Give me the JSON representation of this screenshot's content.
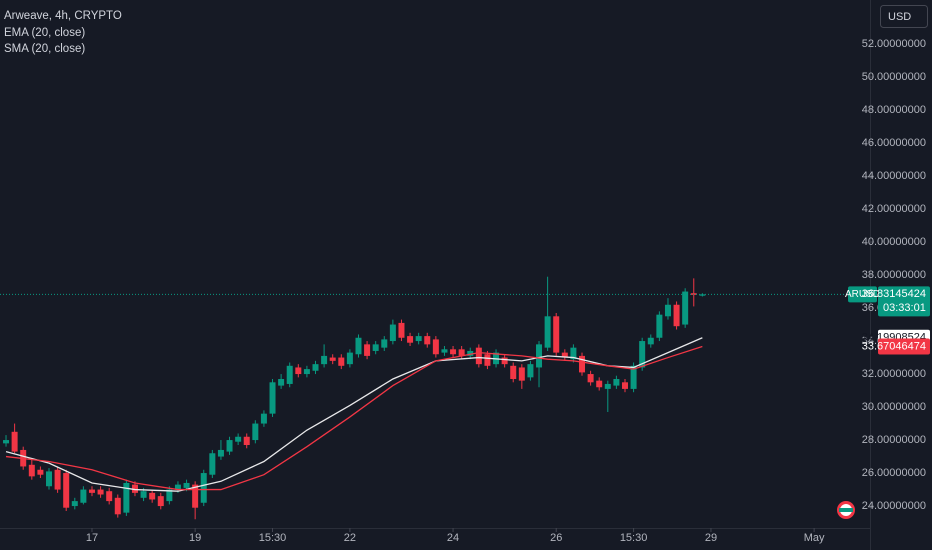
{
  "chart_data": {
    "type": "candlestick",
    "title": "Arweave, 4h, CRYPTO",
    "currency": "USD",
    "symbol_tag": "ARUSD",
    "countdown": "03:33:01",
    "up_color": "#089981",
    "down_color": "#f23645",
    "grid": false,
    "x": [
      0,
      1,
      2,
      3,
      4,
      5,
      6,
      7,
      8,
      9,
      10,
      11,
      12,
      13,
      14,
      15,
      16,
      17,
      18,
      19,
      20,
      21,
      22,
      23,
      24,
      25,
      26,
      27,
      28,
      29,
      30,
      31,
      32,
      33,
      34,
      35,
      36,
      37,
      38,
      39,
      40,
      41,
      42,
      43,
      44,
      45,
      46,
      47,
      48,
      49,
      50,
      51,
      52,
      53,
      54,
      55,
      56,
      57,
      58,
      59,
      60,
      61,
      62,
      63,
      64,
      65,
      66,
      67,
      68,
      69,
      70,
      71,
      72,
      73,
      74,
      75,
      76,
      77,
      78,
      79,
      80,
      81
    ],
    "open": [
      27.8,
      28.5,
      27.4,
      26.5,
      26.2,
      25.2,
      26.2,
      26.0,
      24.0,
      24.2,
      25.0,
      25.0,
      24.9,
      24.5,
      23.6,
      25.3,
      24.5,
      24.8,
      24.6,
      24.3,
      25.0,
      25.1,
      25.3,
      24.2,
      25.9,
      27.0,
      27.3,
      27.9,
      28.2,
      28.0,
      29.0,
      29.6,
      31.3,
      31.4,
      32.4,
      32.0,
      32.2,
      32.6,
      33.0,
      33.0,
      32.6,
      33.2,
      33.8,
      33.4,
      33.6,
      34.0,
      35.1,
      34.3,
      34.0,
      34.3,
      34.1,
      33.3,
      33.5,
      33.5,
      33.1,
      33.6,
      33.2,
      32.6,
      33.0,
      32.5,
      32.4,
      31.8,
      32.4,
      33.6,
      35.5,
      33.3,
      32.9,
      33.1,
      32.0,
      31.6,
      31.1,
      31.3,
      31.5,
      31.1,
      32.4,
      33.8,
      34.2,
      35.5,
      36.2,
      35.0,
      36.9,
      36.75
    ],
    "high": [
      28.3,
      29.0,
      27.6,
      26.8,
      26.4,
      26.3,
      26.4,
      26.2,
      24.5,
      25.2,
      25.2,
      25.2,
      25.1,
      24.7,
      25.6,
      25.5,
      25.1,
      25.0,
      24.8,
      25.2,
      25.5,
      25.6,
      25.5,
      26.2,
      27.4,
      28.0,
      28.2,
      28.4,
      28.4,
      29.2,
      29.8,
      31.7,
      32.0,
      32.7,
      32.6,
      32.5,
      32.8,
      33.8,
      33.2,
      33.2,
      33.5,
      34.4,
      34.0,
      34.0,
      34.3,
      35.3,
      35.3,
      34.5,
      34.5,
      34.5,
      34.3,
      33.7,
      33.7,
      33.7,
      33.6,
      33.8,
      33.4,
      33.5,
      33.2,
      32.7,
      32.6,
      32.8,
      34.0,
      37.9,
      35.7,
      33.5,
      33.8,
      33.3,
      32.2,
      31.8,
      31.6,
      31.9,
      31.7,
      32.7,
      34.2,
      34.4,
      35.8,
      36.6,
      36.4,
      37.2,
      37.8,
      36.9
    ],
    "low": [
      27.6,
      27.2,
      26.2,
      25.6,
      25.7,
      25.0,
      24.8,
      23.7,
      23.8,
      24.1,
      24.6,
      24.5,
      24.1,
      23.3,
      23.4,
      24.6,
      24.3,
      24.2,
      23.8,
      24.1,
      24.8,
      24.9,
      23.2,
      24.0,
      25.7,
      26.8,
      27.1,
      27.7,
      27.5,
      27.8,
      28.8,
      29.4,
      31.1,
      31.2,
      31.8,
      31.8,
      32.0,
      32.4,
      32.6,
      32.3,
      32.4,
      33.0,
      32.9,
      33.2,
      33.4,
      33.8,
      34.0,
      33.7,
      33.8,
      33.6,
      33.0,
      33.1,
      33.0,
      32.9,
      32.9,
      32.4,
      32.3,
      32.4,
      32.4,
      31.5,
      31.1,
      31.6,
      31.2,
      33.4,
      33.1,
      32.8,
      32.7,
      31.9,
      31.3,
      31.0,
      29.7,
      31.1,
      30.9,
      30.9,
      32.2,
      33.6,
      34.0,
      35.3,
      34.7,
      34.8,
      36.1,
      36.7
    ],
    "close": [
      28.0,
      27.3,
      26.4,
      25.8,
      25.9,
      26.1,
      25.0,
      23.9,
      24.3,
      25.0,
      24.8,
      24.7,
      24.3,
      23.5,
      25.4,
      24.8,
      24.9,
      24.4,
      24.0,
      25.0,
      25.3,
      25.4,
      23.9,
      26.0,
      27.2,
      27.4,
      28.0,
      28.2,
      27.7,
      29.0,
      29.6,
      31.5,
      31.7,
      32.5,
      32.0,
      32.3,
      32.6,
      33.1,
      32.8,
      32.5,
      33.3,
      34.2,
      33.1,
      33.8,
      34.1,
      35.0,
      34.2,
      33.9,
      34.3,
      33.8,
      33.2,
      33.5,
      33.2,
      33.1,
      33.4,
      32.6,
      32.5,
      33.3,
      32.6,
      31.7,
      31.6,
      32.6,
      33.8,
      35.5,
      33.3,
      33.0,
      33.6,
      32.1,
      31.5,
      31.2,
      31.4,
      31.7,
      31.1,
      32.5,
      34.0,
      34.2,
      35.6,
      36.2,
      34.9,
      37.0,
      36.8,
      36.83145424
    ],
    "lines": [
      {
        "name": "EMA (20, close)",
        "color": "#e8e8ea",
        "label_fill": "#ffffff",
        "label_text": "#131722",
        "x": [
          0,
          5,
          10,
          15,
          20,
          25,
          30,
          35,
          40,
          45,
          50,
          55,
          60,
          63,
          66,
          70,
          73,
          77,
          81
        ],
        "values": [
          27.3,
          26.6,
          25.4,
          25.0,
          24.9,
          25.5,
          26.7,
          28.6,
          30.1,
          31.7,
          32.8,
          33.0,
          32.8,
          33.1,
          33.0,
          32.5,
          32.4,
          33.3,
          34.19908524
        ]
      },
      {
        "name": "SMA (20, close)",
        "color": "#f23645",
        "label_fill": "#f23645",
        "label_text": "#ffffff",
        "x": [
          0,
          5,
          10,
          15,
          20,
          25,
          30,
          35,
          40,
          45,
          50,
          55,
          60,
          63,
          66,
          70,
          73,
          77,
          81
        ],
        "values": [
          27.0,
          26.7,
          26.2,
          25.4,
          25.0,
          25.0,
          25.9,
          27.6,
          29.4,
          31.3,
          32.8,
          33.3,
          33.1,
          32.9,
          32.8,
          32.5,
          32.3,
          33.0,
          33.67046474
        ]
      }
    ],
    "xlim": [
      -0.7,
      100.5
    ],
    "xticks": [
      {
        "value": 10,
        "label": "17"
      },
      {
        "value": 22,
        "label": "19"
      },
      {
        "value": 31,
        "label": "15:30"
      },
      {
        "value": 40,
        "label": "22"
      },
      {
        "value": 52,
        "label": "24"
      },
      {
        "value": 64,
        "label": "26"
      },
      {
        "value": 73,
        "label": "15:30"
      },
      {
        "value": 82,
        "label": "29"
      },
      {
        "value": 94,
        "label": "May"
      }
    ],
    "ylim": [
      22.67,
      54.67
    ],
    "yticks": [
      {
        "value": 24,
        "label": "24.00000000"
      },
      {
        "value": 26,
        "label": "26.00000000"
      },
      {
        "value": 28,
        "label": "28.00000000"
      },
      {
        "value": 30,
        "label": "30.00000000"
      },
      {
        "value": 32,
        "label": "32.00000000"
      },
      {
        "value": 34,
        "label": "34.00000000"
      },
      {
        "value": 36,
        "label": "36.00000000"
      },
      {
        "value": 38,
        "label": "38.00000000"
      },
      {
        "value": 40,
        "label": "40.00000000"
      },
      {
        "value": 42,
        "label": "42.00000000"
      },
      {
        "value": 44,
        "label": "44.00000000"
      },
      {
        "value": 46,
        "label": "46.00000000"
      },
      {
        "value": 48,
        "label": "48.00000000"
      },
      {
        "value": 50,
        "label": "50.00000000"
      },
      {
        "value": 52,
        "label": "52.00000000"
      }
    ]
  }
}
